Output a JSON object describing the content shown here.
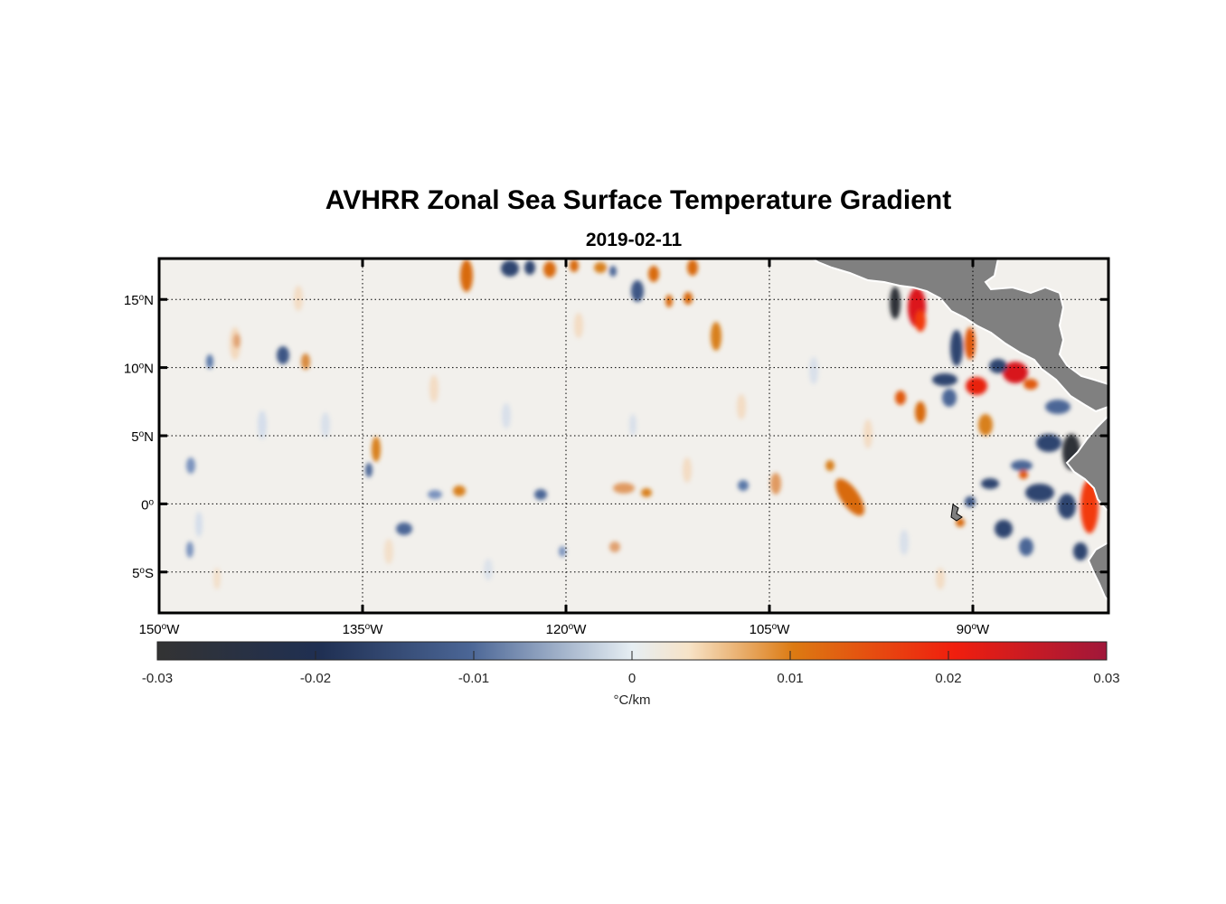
{
  "title": "AVHRR Zonal Sea Surface Temperature Gradient",
  "subtitle": "2019-02-11",
  "map": {
    "lon_range": [
      -150,
      -80
    ],
    "lat_range": [
      -8,
      18
    ],
    "lon_ticks": [
      {
        "value": -150,
        "deg": "150",
        "hemi": "W"
      },
      {
        "value": -135,
        "deg": "135",
        "hemi": "W"
      },
      {
        "value": -120,
        "deg": "120",
        "hemi": "W"
      },
      {
        "value": -105,
        "deg": "105",
        "hemi": "W"
      },
      {
        "value": -90,
        "deg": "90",
        "hemi": "W"
      }
    ],
    "lat_ticks": [
      {
        "value": 15,
        "deg": "15",
        "hemi": "N"
      },
      {
        "value": 10,
        "deg": "10",
        "hemi": "N"
      },
      {
        "value": 5,
        "deg": "5",
        "hemi": "N"
      },
      {
        "value": 0,
        "deg": "0",
        "hemi": ""
      },
      {
        "value": -5,
        "deg": "5",
        "hemi": "S"
      }
    ],
    "land_color": "#808080",
    "grid": "dotted"
  },
  "colorbar": {
    "ticks": [
      "-0.03",
      "-0.02",
      "-0.01",
      "0",
      "0.01",
      "0.02",
      "0.03"
    ],
    "tick_values": [
      -0.03,
      -0.02,
      -0.01,
      0,
      0.01,
      0.02,
      0.03
    ],
    "unit": "°C/km",
    "stops": [
      "#333333",
      "#1f2f52",
      "#4b6696",
      "#e6eef3",
      "#f7e3c7",
      "#dc7a12",
      "#f01e0e",
      "#a0173a"
    ]
  }
}
